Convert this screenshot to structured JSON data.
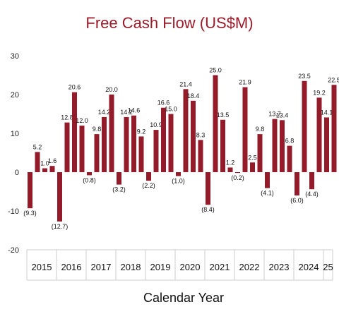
{
  "chart_data": {
    "type": "bar",
    "title": "Free Cash Flow (US$M)",
    "xlabel": "Calendar Year",
    "ylabel": "",
    "ylim": [
      -20,
      30
    ],
    "yticks": [
      30,
      20,
      10,
      0,
      -10,
      -20
    ],
    "grid": false,
    "legend": "none",
    "bar_color": "#941c2a",
    "title_color": "#9b1b2a",
    "years": [
      {
        "label": "2015",
        "bars": 4
      },
      {
        "label": "2016",
        "bars": 4
      },
      {
        "label": "2017",
        "bars": 4
      },
      {
        "label": "2018",
        "bars": 4
      },
      {
        "label": "2019",
        "bars": 4
      },
      {
        "label": "2020",
        "bars": 4
      },
      {
        "label": "2021",
        "bars": 4
      },
      {
        "label": "2022",
        "bars": 4
      },
      {
        "label": "2023",
        "bars": 4
      },
      {
        "label": "2024",
        "bars": 4
      },
      {
        "label": "25",
        "bars": 2
      }
    ],
    "bars": [
      {
        "value": -9.3,
        "label": "(9.3)"
      },
      {
        "value": 5.2,
        "label": "5.2"
      },
      {
        "value": 1.0,
        "label": "1.0"
      },
      {
        "value": 1.6,
        "label": "1.6"
      },
      {
        "value": -12.7,
        "label": "(12.7)"
      },
      {
        "value": 12.8,
        "label": "12.8"
      },
      {
        "value": 20.6,
        "label": "20.6"
      },
      {
        "value": 12.0,
        "label": "12.0"
      },
      {
        "value": -0.8,
        "label": "(0.8)"
      },
      {
        "value": 9.8,
        "label": "9.8"
      },
      {
        "value": 14.2,
        "label": "14.2"
      },
      {
        "value": 20.0,
        "label": "20.0"
      },
      {
        "value": -3.2,
        "label": "(3.2)"
      },
      {
        "value": 14.2,
        "label": "14.2"
      },
      {
        "value": 14.6,
        "label": "14.6"
      },
      {
        "value": 9.2,
        "label": "9.2"
      },
      {
        "value": -2.2,
        "label": "(2.2)"
      },
      {
        "value": 10.9,
        "label": "10.9"
      },
      {
        "value": 16.6,
        "label": "16.6"
      },
      {
        "value": 15.0,
        "label": "15.0"
      },
      {
        "value": -1.0,
        "label": "(1.0)"
      },
      {
        "value": 21.4,
        "label": "21.4"
      },
      {
        "value": 18.4,
        "label": "18.4"
      },
      {
        "value": 8.3,
        "label": "8.3"
      },
      {
        "value": -8.4,
        "label": "(8.4)"
      },
      {
        "value": 25.0,
        "label": "25.0"
      },
      {
        "value": 13.5,
        "label": "13.5"
      },
      {
        "value": 1.2,
        "label": "1.2"
      },
      {
        "value": -0.2,
        "label": "(0.2)"
      },
      {
        "value": 21.9,
        "label": "21.9"
      },
      {
        "value": 2.5,
        "label": "2.5"
      },
      {
        "value": 9.8,
        "label": "9.8"
      },
      {
        "value": -4.1,
        "label": "(4.1)"
      },
      {
        "value": 13.7,
        "label": "13.7"
      },
      {
        "value": 13.4,
        "label": "13.4"
      },
      {
        "value": 6.8,
        "label": "6.8"
      },
      {
        "value": -6.0,
        "label": "(6.0)"
      },
      {
        "value": 23.5,
        "label": "23.5"
      },
      {
        "value": -4.4,
        "label": "(4.4)"
      },
      {
        "value": 19.2,
        "label": "19.2"
      },
      {
        "value": 14.1,
        "label": "14.1"
      },
      {
        "value": 22.5,
        "label": "22.5"
      }
    ]
  }
}
